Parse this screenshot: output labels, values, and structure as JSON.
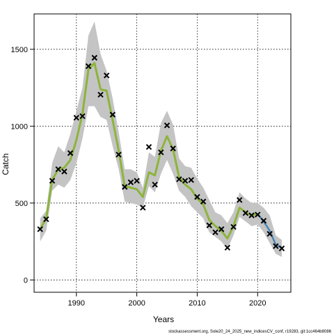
{
  "chart_data": {
    "type": "line",
    "xlabel": "Years",
    "ylabel": "Catch",
    "xlim": [
      1983,
      2025.5
    ],
    "ylim": [
      -80,
      1730
    ],
    "x_ticks": [
      1990,
      2000,
      2010,
      2020
    ],
    "y_ticks": [
      0,
      500,
      1000,
      1500
    ],
    "grid": true,
    "footer": "stockassessment.org, Sole20_24_2025_new_indicesCV_conf, r19283, git:1cc464b8086",
    "colors": {
      "band": "#c4c4c4",
      "fit_line": "#8cb43c",
      "fit_line_tail": "#4a86b5",
      "observed_marker": "#000000",
      "grid": "#000000"
    },
    "years": [
      1984,
      1985,
      1986,
      1987,
      1988,
      1989,
      1990,
      1991,
      1992,
      1993,
      1994,
      1995,
      1996,
      1997,
      1998,
      1999,
      2000,
      2001,
      2002,
      2003,
      2004,
      2005,
      2006,
      2007,
      2008,
      2009,
      2010,
      2011,
      2012,
      2013,
      2014,
      2015,
      2016,
      2017,
      2018,
      2019,
      2020,
      2021,
      2022,
      2023,
      2024
    ],
    "series": [
      {
        "name": "fitted",
        "values": [
          330,
          400,
          650,
          720,
          730,
          780,
          910,
          1080,
          1370,
          1410,
          1240,
          1230,
          1040,
          840,
          610,
          600,
          590,
          540,
          700,
          680,
          840,
          935,
          850,
          670,
          620,
          590,
          530,
          490,
          390,
          350,
          320,
          270,
          350,
          470,
          440,
          420,
          430,
          380,
          320,
          230,
          210
        ]
      },
      {
        "name": "upper",
        "values": [
          400,
          450,
          760,
          870,
          830,
          950,
          1100,
          1250,
          1590,
          1680,
          1470,
          1360,
          1180,
          960,
          720,
          720,
          700,
          600,
          830,
          800,
          1020,
          1100,
          1010,
          790,
          740,
          730,
          660,
          600,
          520,
          440,
          420,
          370,
          440,
          570,
          530,
          500,
          500,
          470,
          420,
          290,
          260
        ]
      },
      {
        "name": "lower",
        "values": [
          250,
          320,
          580,
          620,
          600,
          650,
          760,
          920,
          1130,
          1130,
          1060,
          1040,
          870,
          720,
          510,
          500,
          490,
          470,
          610,
          570,
          690,
          780,
          690,
          580,
          540,
          480,
          440,
          400,
          310,
          280,
          250,
          200,
          290,
          410,
          380,
          350,
          360,
          310,
          240,
          170,
          150
        ]
      },
      {
        "name": "observed",
        "values": [
          330,
          395,
          645,
          720,
          705,
          825,
          1055,
          1065,
          1390,
          1445,
          1205,
          1330,
          1075,
          815,
          605,
          635,
          645,
          470,
          865,
          620,
          830,
          1005,
          855,
          655,
          645,
          650,
          540,
          510,
          355,
          310,
          330,
          210,
          345,
          520,
          435,
          420,
          425,
          385,
          300,
          220,
          205
        ]
      }
    ]
  }
}
